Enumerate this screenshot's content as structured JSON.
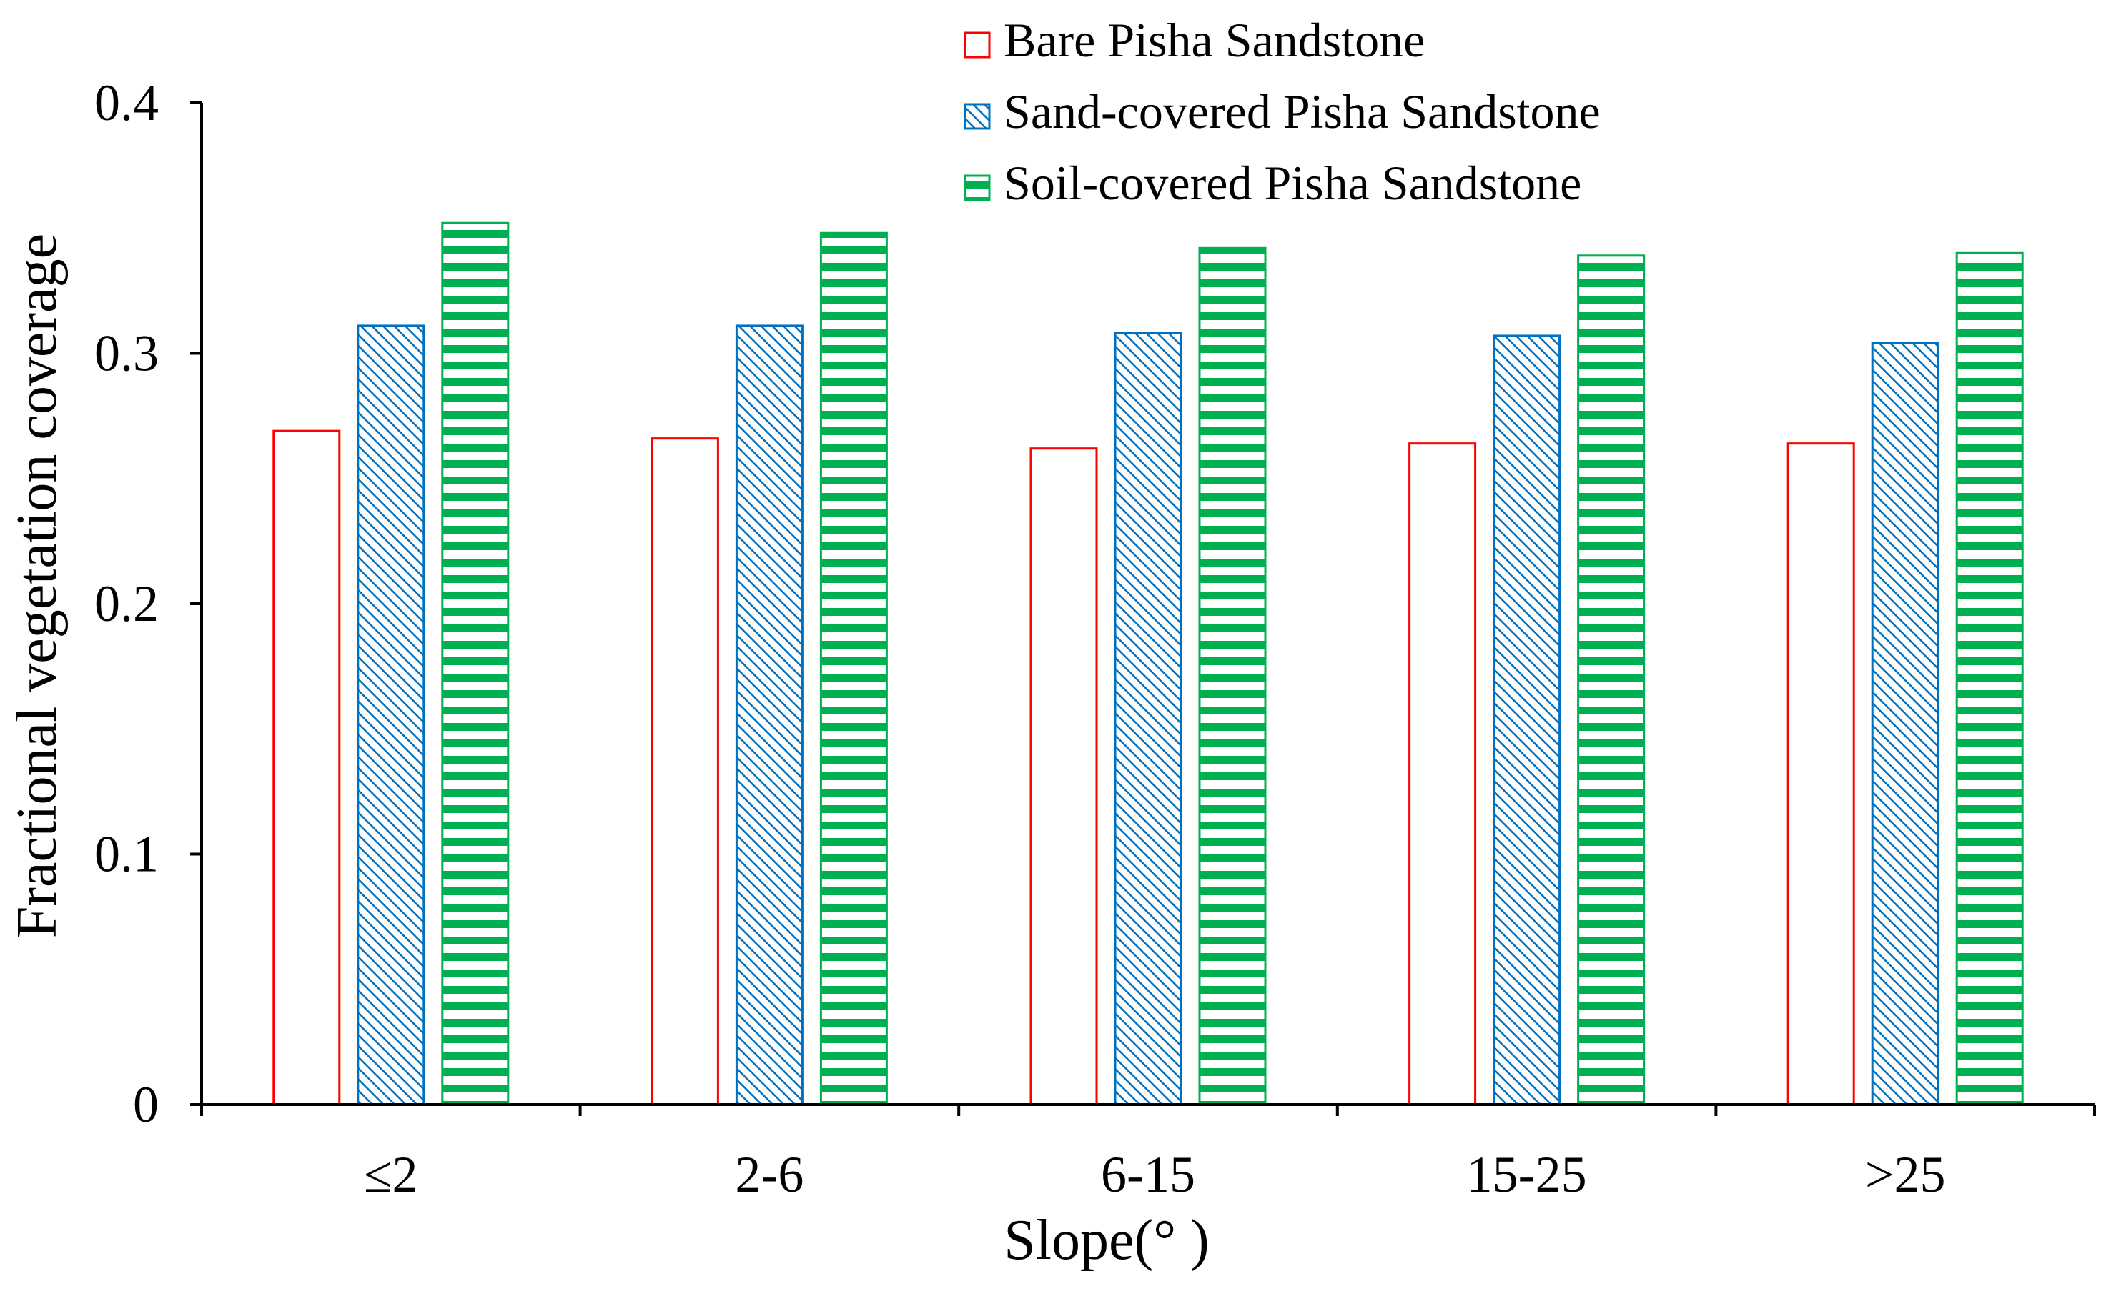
{
  "chart_data": {
    "type": "bar",
    "title": "",
    "xlabel": "Slope(°  )",
    "ylabel": "Fractional vegetation coverage",
    "categories": [
      "≤2",
      "2-6",
      "6-15",
      "15-25",
      ">25"
    ],
    "series": [
      {
        "name": "Bare Pisha Sandstone",
        "color": "#ff0000",
        "pattern": "none",
        "values": [
          0.269,
          0.266,
          0.262,
          0.264,
          0.264
        ]
      },
      {
        "name": "Sand-covered Pisha Sandstone",
        "color": "#0070c0",
        "pattern": "diagonal",
        "values": [
          0.311,
          0.311,
          0.308,
          0.307,
          0.304
        ]
      },
      {
        "name": "Soil-covered Pisha Sandstone",
        "color": "#00b050",
        "pattern": "horizontal",
        "values": [
          0.352,
          0.348,
          0.342,
          0.339,
          0.34
        ]
      }
    ],
    "ylim": [
      0,
      0.4
    ],
    "yticks": [
      0,
      0.1,
      0.2,
      0.3,
      0.4
    ],
    "ytick_labels": [
      "0",
      "0.1",
      "0.2",
      "0.3",
      "0.4"
    ],
    "grid": false,
    "legend_position": "top-center"
  }
}
